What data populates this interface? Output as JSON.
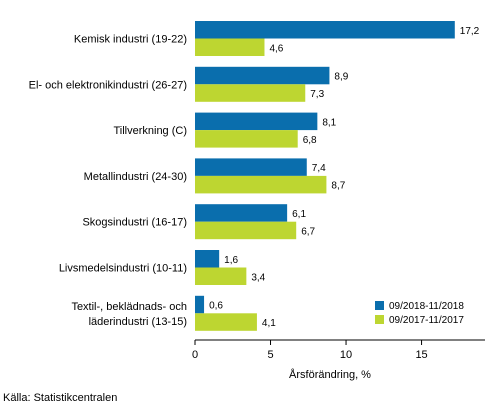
{
  "chart_data": {
    "type": "bar",
    "orientation": "horizontal",
    "categories": [
      [
        "Kemisk industri (19-22)"
      ],
      [
        "El- och elektronikindustri (26-27)"
      ],
      [
        "Tillverkning (C)"
      ],
      [
        "Metallindustri (24-30)"
      ],
      [
        "Skogsindustri (16-17)"
      ],
      [
        "Livsmedelsindustri (10-11)"
      ],
      [
        "Textil-, beklädnads- och",
        "läderindustri (13-15)"
      ]
    ],
    "series": [
      {
        "name": "09/2018-11/2018",
        "color": "#0a6ead",
        "values": [
          17.2,
          8.9,
          8.1,
          7.4,
          6.1,
          1.6,
          0.6
        ],
        "labels": [
          "17,2",
          "8,9",
          "8,1",
          "7,4",
          "6,1",
          "1,6",
          "0,6"
        ]
      },
      {
        "name": "09/2017-11/2017",
        "color": "#bdd631",
        "values": [
          4.6,
          7.3,
          6.8,
          8.7,
          6.7,
          3.4,
          4.1
        ],
        "labels": [
          "4,6",
          "7,3",
          "6,8",
          "8,7",
          "6,7",
          "3,4",
          "4,1"
        ]
      }
    ],
    "xlim": [
      0,
      19.2
    ],
    "xticks": [
      0,
      5,
      10,
      15
    ],
    "xtick_labels": [
      "0",
      "5",
      "10",
      "15"
    ],
    "xlabel": "Årsförändring, %",
    "legend_position": "bottom-right",
    "grid": false
  },
  "source_text": "Källa: Statistikcentralen"
}
